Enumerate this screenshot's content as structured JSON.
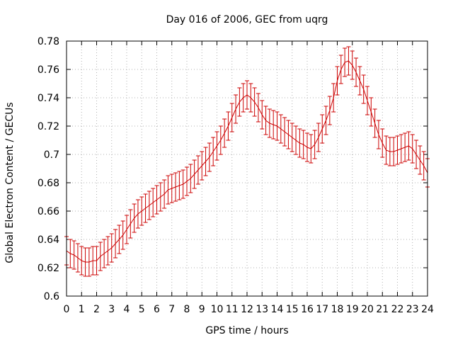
{
  "chart_data": {
    "type": "line",
    "title": "Day 016 of 2006, GEC from uqrg",
    "xlabel": "GPS time / hours",
    "ylabel": "Global Electron Content / GECUs",
    "xlim": [
      0,
      24
    ],
    "ylim": [
      0.6,
      0.78
    ],
    "x_ticks": [
      "0",
      "1",
      "2",
      "3",
      "4",
      "5",
      "6",
      "7",
      "8",
      "9",
      "10",
      "11",
      "12",
      "13",
      "14",
      "15",
      "16",
      "17",
      "18",
      "19",
      "20",
      "21",
      "22",
      "23",
      "24"
    ],
    "y_ticks": [
      "0.6",
      "0.62",
      "0.64",
      "0.66",
      "0.68",
      "0.7",
      "0.72",
      "0.74",
      "0.76",
      "0.78"
    ],
    "grid": true,
    "error_bars": true,
    "color": "#cc0000",
    "error_halfwidth": 0.01,
    "series": [
      {
        "x": [
          0,
          0.25,
          0.5,
          0.75,
          1,
          1.25,
          1.5,
          1.75,
          2,
          2.25,
          2.5,
          2.75,
          3,
          3.25,
          3.5,
          3.75,
          4,
          4.25,
          4.5,
          4.75,
          5,
          5.25,
          5.5,
          5.75,
          6,
          6.25,
          6.5,
          6.75,
          7,
          7.25,
          7.5,
          7.75,
          8,
          8.25,
          8.5,
          8.75,
          9,
          9.25,
          9.5,
          9.75,
          10,
          10.25,
          10.5,
          10.75,
          11,
          11.25,
          11.5,
          11.75,
          12,
          12.25,
          12.5,
          12.75,
          13,
          13.25,
          13.5,
          13.75,
          14,
          14.25,
          14.5,
          14.75,
          15,
          15.25,
          15.5,
          15.75,
          16,
          16.25,
          16.5,
          16.75,
          17,
          17.25,
          17.5,
          17.75,
          18,
          18.25,
          18.5,
          18.75,
          19,
          19.25,
          19.5,
          19.75,
          20,
          20.25,
          20.5,
          20.75,
          21,
          21.25,
          21.5,
          21.75,
          22,
          22.25,
          22.5,
          22.75,
          23,
          23.25,
          23.5,
          23.75,
          24
        ],
        "y": [
          0.632,
          0.63,
          0.629,
          0.627,
          0.625,
          0.624,
          0.624,
          0.625,
          0.625,
          0.628,
          0.63,
          0.632,
          0.634,
          0.637,
          0.64,
          0.643,
          0.647,
          0.651,
          0.655,
          0.658,
          0.66,
          0.662,
          0.664,
          0.666,
          0.668,
          0.67,
          0.672,
          0.675,
          0.676,
          0.677,
          0.678,
          0.679,
          0.681,
          0.683,
          0.686,
          0.689,
          0.692,
          0.695,
          0.698,
          0.702,
          0.706,
          0.71,
          0.715,
          0.72,
          0.726,
          0.732,
          0.737,
          0.74,
          0.742,
          0.74,
          0.737,
          0.733,
          0.728,
          0.724,
          0.722,
          0.721,
          0.72,
          0.718,
          0.716,
          0.714,
          0.712,
          0.71,
          0.708,
          0.707,
          0.705,
          0.704,
          0.707,
          0.712,
          0.718,
          0.724,
          0.731,
          0.74,
          0.752,
          0.76,
          0.765,
          0.766,
          0.763,
          0.758,
          0.752,
          0.746,
          0.738,
          0.73,
          0.722,
          0.714,
          0.708,
          0.703,
          0.702,
          0.702,
          0.703,
          0.704,
          0.705,
          0.706,
          0.704,
          0.7,
          0.696,
          0.692,
          0.687
        ]
      }
    ]
  }
}
